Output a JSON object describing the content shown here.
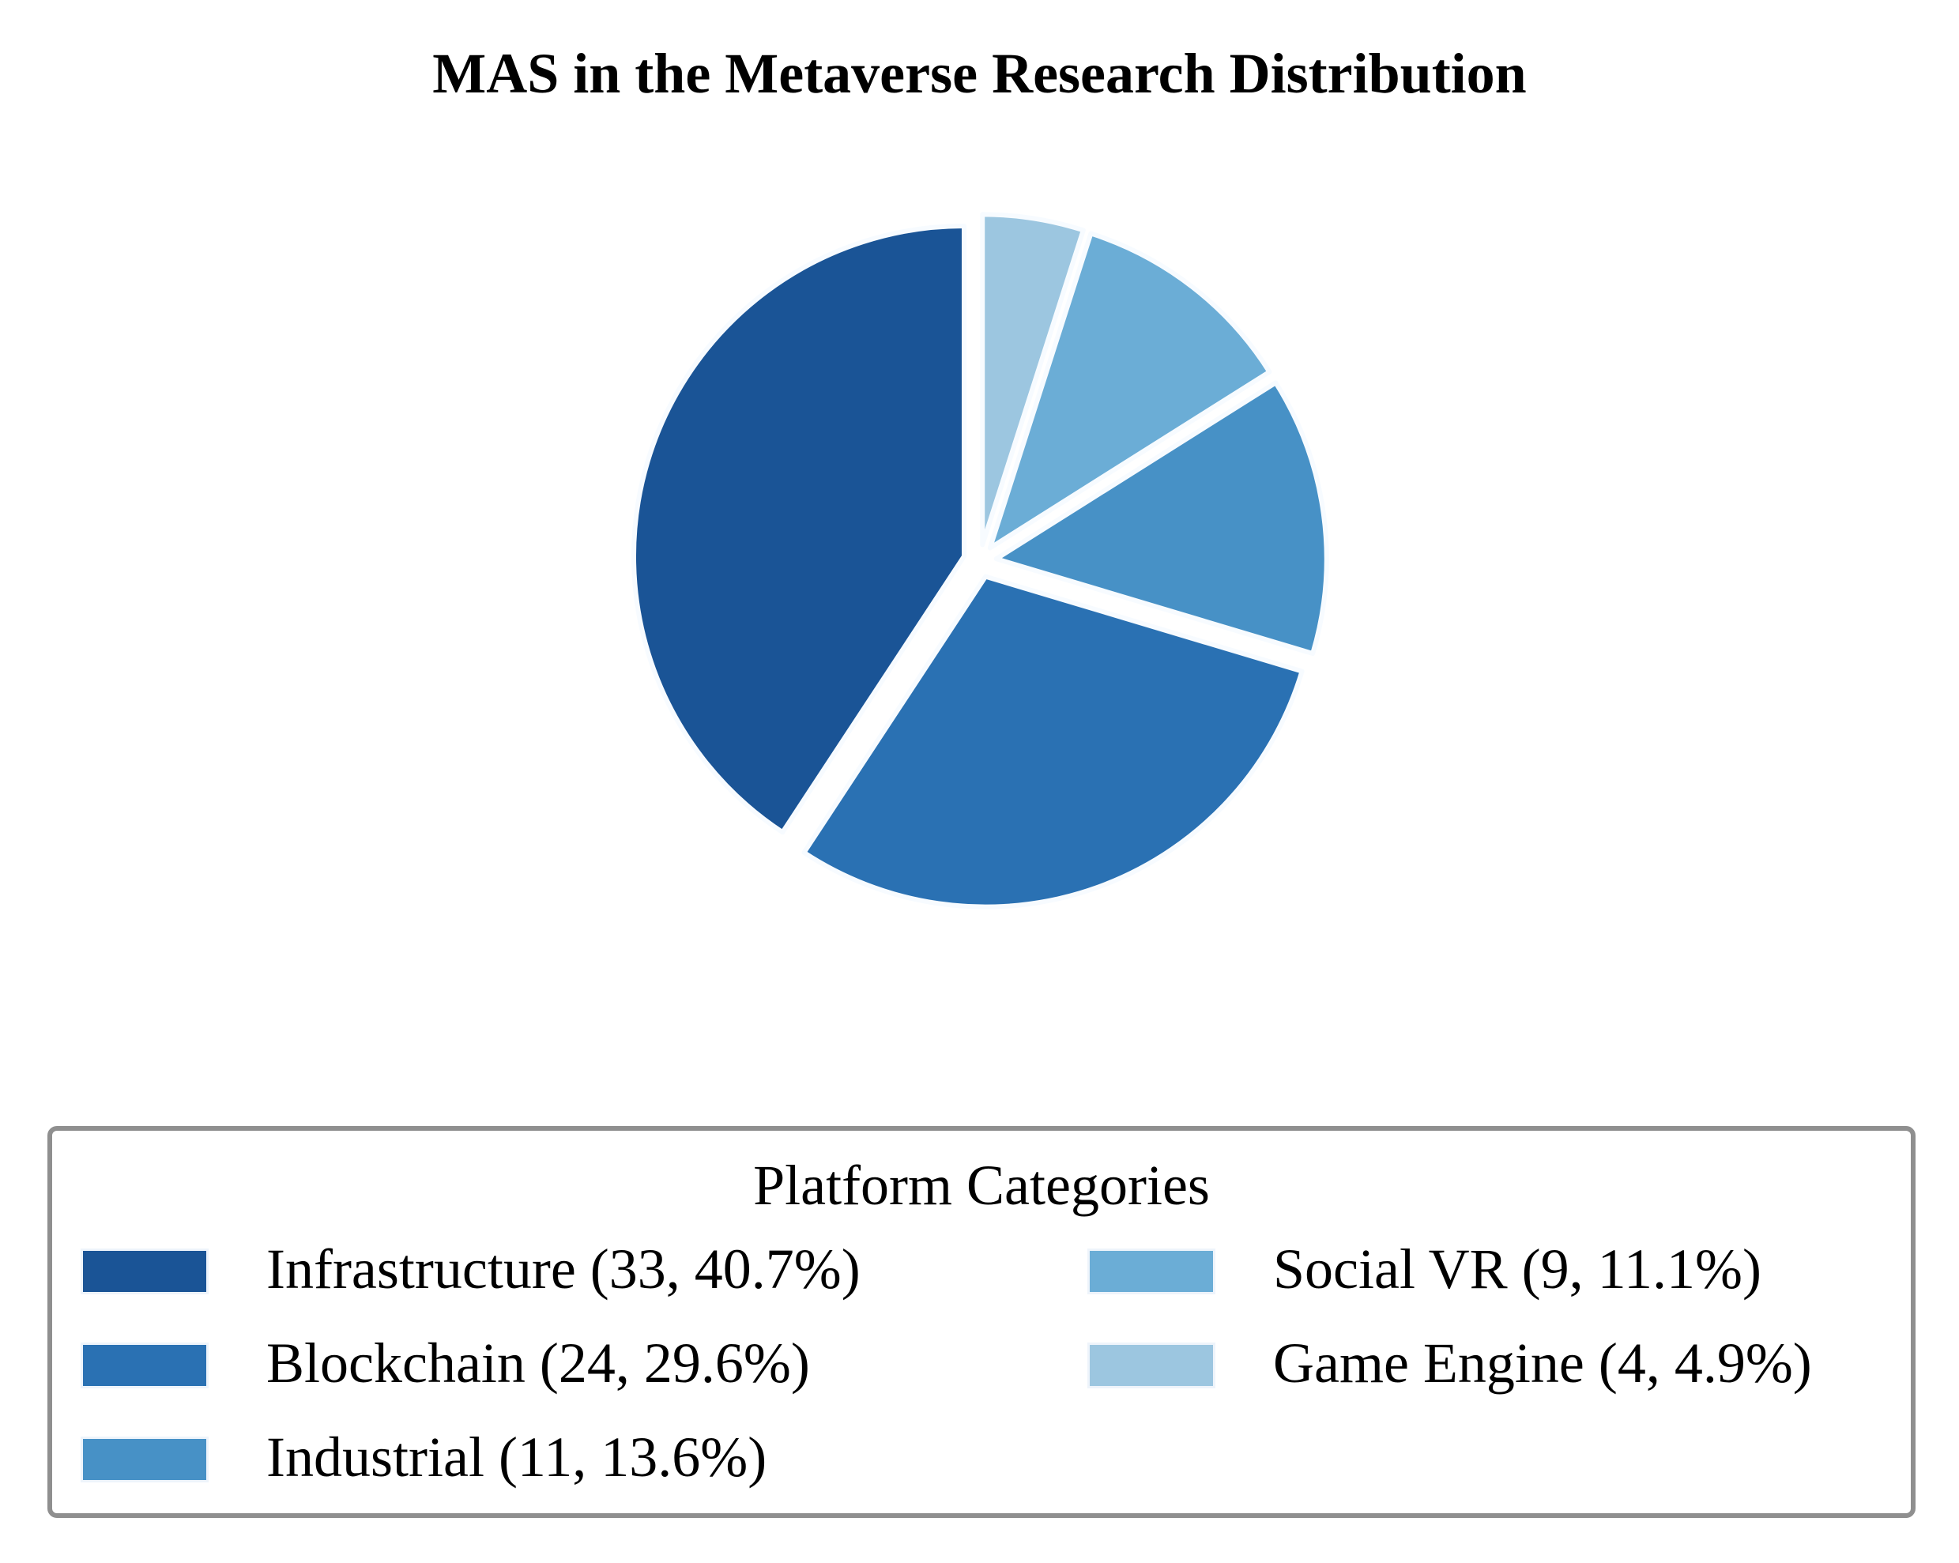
{
  "chart_data": {
    "type": "pie",
    "title": "MAS in the Metaverse Research Distribution",
    "legend_title": "Platform Categories",
    "legend_placement": "bottom",
    "slices": [
      {
        "label": "Infrastructure",
        "value": 33,
        "percent": "40.7%",
        "legend_text": "Infrastructure (33, 40.7%)",
        "color": "#1a5496"
      },
      {
        "label": "Blockchain",
        "value": 24,
        "percent": "29.6%",
        "legend_text": "Blockchain (24, 29.6%)",
        "color": "#2a71b3"
      },
      {
        "label": "Industrial",
        "value": 11,
        "percent": "13.6%",
        "legend_text": "Industrial (11, 13.6%)",
        "color": "#4791c6"
      },
      {
        "label": "Social VR",
        "value": 9,
        "percent": "11.1%",
        "legend_text": "Social VR (9, 11.1%)",
        "color": "#6badd6"
      },
      {
        "label": "Game Engine",
        "value": 4,
        "percent": "4.9%",
        "legend_text": "Game Engine (4, 4.9%)",
        "color": "#9cc6e0"
      }
    ],
    "start_angle_deg": 90,
    "direction": "counterclockwise",
    "exploded": true,
    "edge_color": "#f7fbff"
  }
}
